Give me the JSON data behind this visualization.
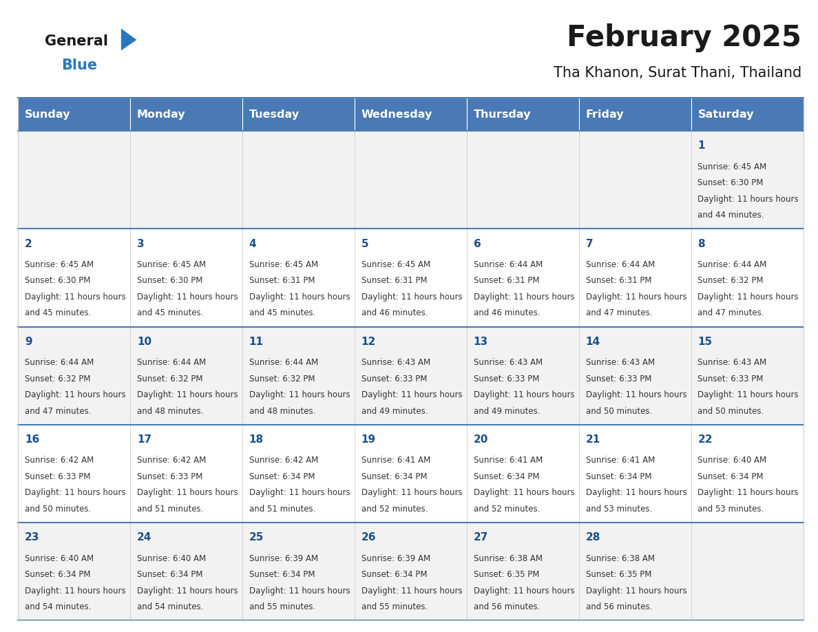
{
  "title": "February 2025",
  "subtitle": "Tha Khanon, Surat Thani, Thailand",
  "header_bg": "#4a7ab5",
  "header_text": "#FFFFFF",
  "cell_bg": "#f2f2f2",
  "cell_bg2": "#ffffff",
  "border_color": "#4a7ab5",
  "day_names": [
    "Sunday",
    "Monday",
    "Tuesday",
    "Wednesday",
    "Thursday",
    "Friday",
    "Saturday"
  ],
  "title_color": "#1a1a1a",
  "subtitle_color": "#1a1a1a",
  "cell_text_color": "#333333",
  "day_num_color": "#1a4f8a",
  "logo_general_color": "#1a1a1a",
  "logo_blue_color": "#2878c0",
  "calendar": [
    [
      null,
      null,
      null,
      null,
      null,
      null,
      {
        "day": 1,
        "sunrise": "6:45 AM",
        "sunset": "6:30 PM",
        "daylight": "11 hours and 44 minutes."
      }
    ],
    [
      {
        "day": 2,
        "sunrise": "6:45 AM",
        "sunset": "6:30 PM",
        "daylight": "11 hours and 45 minutes."
      },
      {
        "day": 3,
        "sunrise": "6:45 AM",
        "sunset": "6:30 PM",
        "daylight": "11 hours and 45 minutes."
      },
      {
        "day": 4,
        "sunrise": "6:45 AM",
        "sunset": "6:31 PM",
        "daylight": "11 hours and 45 minutes."
      },
      {
        "day": 5,
        "sunrise": "6:45 AM",
        "sunset": "6:31 PM",
        "daylight": "11 hours and 46 minutes."
      },
      {
        "day": 6,
        "sunrise": "6:44 AM",
        "sunset": "6:31 PM",
        "daylight": "11 hours and 46 minutes."
      },
      {
        "day": 7,
        "sunrise": "6:44 AM",
        "sunset": "6:31 PM",
        "daylight": "11 hours and 47 minutes."
      },
      {
        "day": 8,
        "sunrise": "6:44 AM",
        "sunset": "6:32 PM",
        "daylight": "11 hours and 47 minutes."
      }
    ],
    [
      {
        "day": 9,
        "sunrise": "6:44 AM",
        "sunset": "6:32 PM",
        "daylight": "11 hours and 47 minutes."
      },
      {
        "day": 10,
        "sunrise": "6:44 AM",
        "sunset": "6:32 PM",
        "daylight": "11 hours and 48 minutes."
      },
      {
        "day": 11,
        "sunrise": "6:44 AM",
        "sunset": "6:32 PM",
        "daylight": "11 hours and 48 minutes."
      },
      {
        "day": 12,
        "sunrise": "6:43 AM",
        "sunset": "6:33 PM",
        "daylight": "11 hours and 49 minutes."
      },
      {
        "day": 13,
        "sunrise": "6:43 AM",
        "sunset": "6:33 PM",
        "daylight": "11 hours and 49 minutes."
      },
      {
        "day": 14,
        "sunrise": "6:43 AM",
        "sunset": "6:33 PM",
        "daylight": "11 hours and 50 minutes."
      },
      {
        "day": 15,
        "sunrise": "6:43 AM",
        "sunset": "6:33 PM",
        "daylight": "11 hours and 50 minutes."
      }
    ],
    [
      {
        "day": 16,
        "sunrise": "6:42 AM",
        "sunset": "6:33 PM",
        "daylight": "11 hours and 50 minutes."
      },
      {
        "day": 17,
        "sunrise": "6:42 AM",
        "sunset": "6:33 PM",
        "daylight": "11 hours and 51 minutes."
      },
      {
        "day": 18,
        "sunrise": "6:42 AM",
        "sunset": "6:34 PM",
        "daylight": "11 hours and 51 minutes."
      },
      {
        "day": 19,
        "sunrise": "6:41 AM",
        "sunset": "6:34 PM",
        "daylight": "11 hours and 52 minutes."
      },
      {
        "day": 20,
        "sunrise": "6:41 AM",
        "sunset": "6:34 PM",
        "daylight": "11 hours and 52 minutes."
      },
      {
        "day": 21,
        "sunrise": "6:41 AM",
        "sunset": "6:34 PM",
        "daylight": "11 hours and 53 minutes."
      },
      {
        "day": 22,
        "sunrise": "6:40 AM",
        "sunset": "6:34 PM",
        "daylight": "11 hours and 53 minutes."
      }
    ],
    [
      {
        "day": 23,
        "sunrise": "6:40 AM",
        "sunset": "6:34 PM",
        "daylight": "11 hours and 54 minutes."
      },
      {
        "day": 24,
        "sunrise": "6:40 AM",
        "sunset": "6:34 PM",
        "daylight": "11 hours and 54 minutes."
      },
      {
        "day": 25,
        "sunrise": "6:39 AM",
        "sunset": "6:34 PM",
        "daylight": "11 hours and 55 minutes."
      },
      {
        "day": 26,
        "sunrise": "6:39 AM",
        "sunset": "6:34 PM",
        "daylight": "11 hours and 55 minutes."
      },
      {
        "day": 27,
        "sunrise": "6:38 AM",
        "sunset": "6:35 PM",
        "daylight": "11 hours and 56 minutes."
      },
      {
        "day": 28,
        "sunrise": "6:38 AM",
        "sunset": "6:35 PM",
        "daylight": "11 hours and 56 minutes."
      },
      null
    ]
  ],
  "figsize": [
    11.88,
    9.18
  ],
  "dpi": 100
}
